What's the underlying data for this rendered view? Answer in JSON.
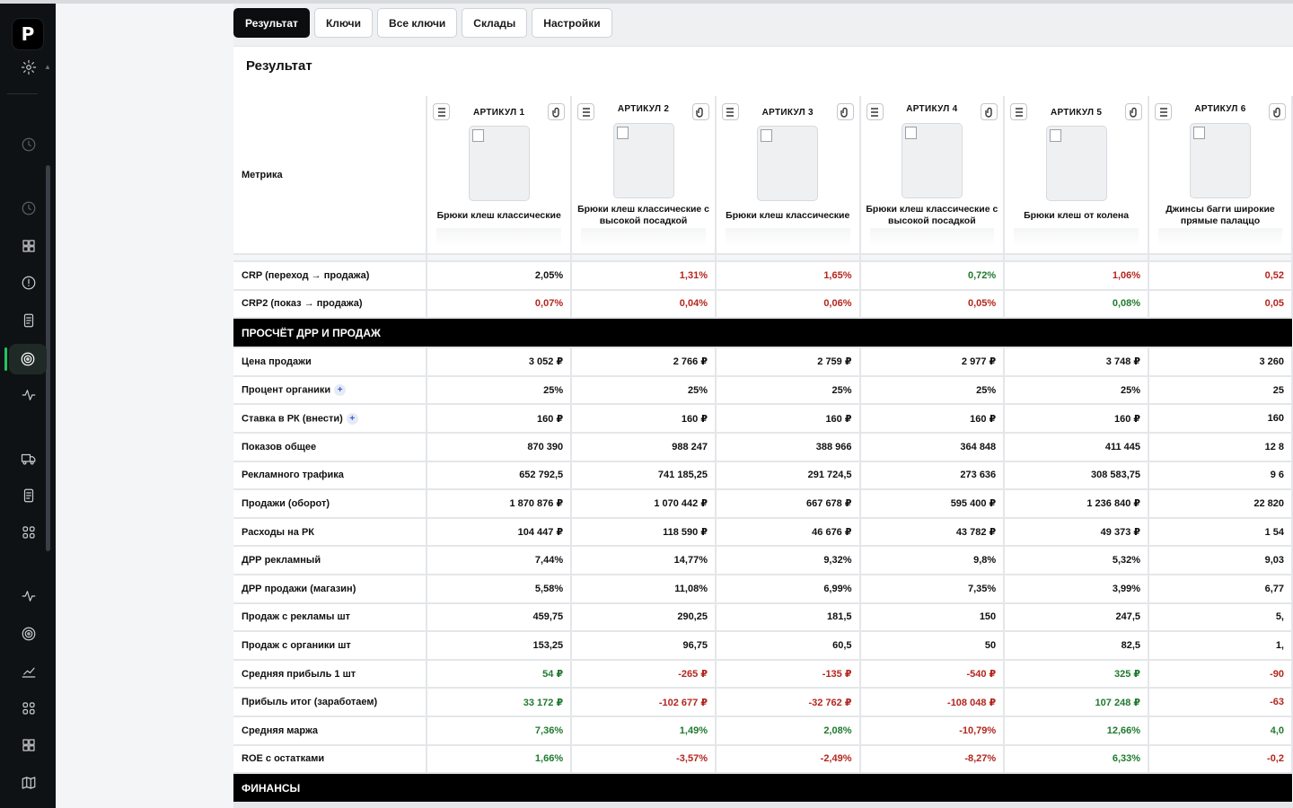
{
  "app": {
    "logo_letter": "P"
  },
  "tabs": [
    {
      "label": "Результат",
      "active": true
    },
    {
      "label": "Ключи"
    },
    {
      "label": "Все ключи"
    },
    {
      "label": "Склады"
    },
    {
      "label": "Настройки"
    }
  ],
  "panel": {
    "title": "Результат",
    "metric_header": "Метрика"
  },
  "columns": [
    {
      "article": "АРТИКУЛ 1",
      "name": "Брюки клеш классические"
    },
    {
      "article": "АРТИКУЛ 2",
      "name": "Брюки клеш классические с высокой посадкой"
    },
    {
      "article": "АРТИКУЛ 3",
      "name": "Брюки клеш классические"
    },
    {
      "article": "АРТИКУЛ 4",
      "name": "Брюки клеш классические с высокой посадкой"
    },
    {
      "article": "АРТИКУЛ 5",
      "name": "Брюки клеш от колена"
    },
    {
      "article": "АРТИКУЛ 6",
      "name": "Джинсы багги широкие прямые палаццо"
    }
  ],
  "rows": [
    {
      "type": "row",
      "label": "CRP (переход → продажа)",
      "values": [
        "2,05%",
        "1,31%",
        "1,65%",
        "0,72%",
        "1,06%",
        "0,52"
      ],
      "colors": [
        "n",
        "r",
        "r",
        "g",
        "r",
        "r"
      ]
    },
    {
      "type": "row",
      "label": "CRP2 (показ → продажа)",
      "values": [
        "0,07%",
        "0,04%",
        "0,06%",
        "0,05%",
        "0,08%",
        "0,05"
      ],
      "colors": [
        "r",
        "r",
        "r",
        "r",
        "g",
        "r"
      ]
    },
    {
      "type": "section",
      "label": "ПРОСЧЁТ ДРР И ПРОДАЖ"
    },
    {
      "type": "row",
      "label": "Цена продажи",
      "values": [
        "3 052 ₽",
        "2 766 ₽",
        "2 759 ₽",
        "2 977 ₽",
        "3 748 ₽",
        "3 260"
      ]
    },
    {
      "type": "row",
      "label": "Процент органики",
      "plus": true,
      "values": [
        "25%",
        "25%",
        "25%",
        "25%",
        "25%",
        "25"
      ]
    },
    {
      "type": "row",
      "label": "Ставка в РК (внести)",
      "plus": true,
      "values": [
        "160 ₽",
        "160 ₽",
        "160 ₽",
        "160 ₽",
        "160 ₽",
        "160"
      ]
    },
    {
      "type": "row",
      "label": "Показов общее",
      "values": [
        "870 390",
        "988 247",
        "388 966",
        "364 848",
        "411 445",
        "12 8"
      ]
    },
    {
      "type": "row",
      "label": "Рекламного трафика",
      "values": [
        "652 792,5",
        "741 185,25",
        "291 724,5",
        "273 636",
        "308 583,75",
        "9 6"
      ]
    },
    {
      "type": "row",
      "label": "Продажи (оборот)",
      "values": [
        "1 870 876 ₽",
        "1 070 442 ₽",
        "667 678 ₽",
        "595 400 ₽",
        "1 236 840 ₽",
        "22 820"
      ]
    },
    {
      "type": "row",
      "label": "Расходы на РК",
      "values": [
        "104 447 ₽",
        "118 590 ₽",
        "46 676 ₽",
        "43 782 ₽",
        "49 373 ₽",
        "1 54"
      ]
    },
    {
      "type": "row",
      "label": "ДРР рекламный",
      "values": [
        "7,44%",
        "14,77%",
        "9,32%",
        "9,8%",
        "5,32%",
        "9,03"
      ]
    },
    {
      "type": "row",
      "label": "ДРР продажи (магазин)",
      "values": [
        "5,58%",
        "11,08%",
        "6,99%",
        "7,35%",
        "3,99%",
        "6,77"
      ]
    },
    {
      "type": "row",
      "label": "Продаж с рекламы шт",
      "values": [
        "459,75",
        "290,25",
        "181,5",
        "150",
        "247,5",
        "5,"
      ]
    },
    {
      "type": "row",
      "label": "Продаж с органики шт",
      "values": [
        "153,25",
        "96,75",
        "60,5",
        "50",
        "82,5",
        "1,"
      ]
    },
    {
      "type": "row",
      "label": "Средняя прибыль 1 шт",
      "values": [
        "54 ₽",
        "-265 ₽",
        "-135 ₽",
        "-540 ₽",
        "325 ₽",
        "-90"
      ],
      "colors": [
        "g",
        "r",
        "r",
        "r",
        "g",
        "r"
      ]
    },
    {
      "type": "row",
      "label": "Прибыль итог (заработаем)",
      "values": [
        "33 172 ₽",
        "-102 677 ₽",
        "-32 762 ₽",
        "-108 048 ₽",
        "107 248 ₽",
        "-63"
      ],
      "colors": [
        "g",
        "r",
        "r",
        "r",
        "g",
        "r"
      ]
    },
    {
      "type": "row",
      "label": "Средняя маржа",
      "values": [
        "7,36%",
        "1,49%",
        "2,08%",
        "-10,79%",
        "12,66%",
        "4,0"
      ],
      "colors": [
        "g",
        "g",
        "g",
        "r",
        "g",
        "g"
      ]
    },
    {
      "type": "row",
      "label": "ROE с остатками",
      "values": [
        "1,66%",
        "-3,57%",
        "-2,49%",
        "-8,27%",
        "6,33%",
        "-0,2"
      ],
      "colors": [
        "g",
        "r",
        "r",
        "r",
        "g",
        "r"
      ]
    },
    {
      "type": "section",
      "label": "ФИНАНСЫ"
    }
  ],
  "sidebar": {
    "icons": [
      "settings-icon",
      "clock-icon",
      "clock-icon",
      "grid-icon",
      "alert-icon",
      "document-icon",
      "target-icon",
      "activity-icon",
      "truck-icon",
      "document-icon",
      "apps-icon",
      "activity-icon",
      "target-icon",
      "chart-line-icon",
      "apps-icon",
      "grid-icon",
      "map-icon"
    ]
  },
  "colors": {
    "negative": "#b3261e",
    "positive": "#1f7a2e",
    "active_indicator": "#22c55e"
  }
}
